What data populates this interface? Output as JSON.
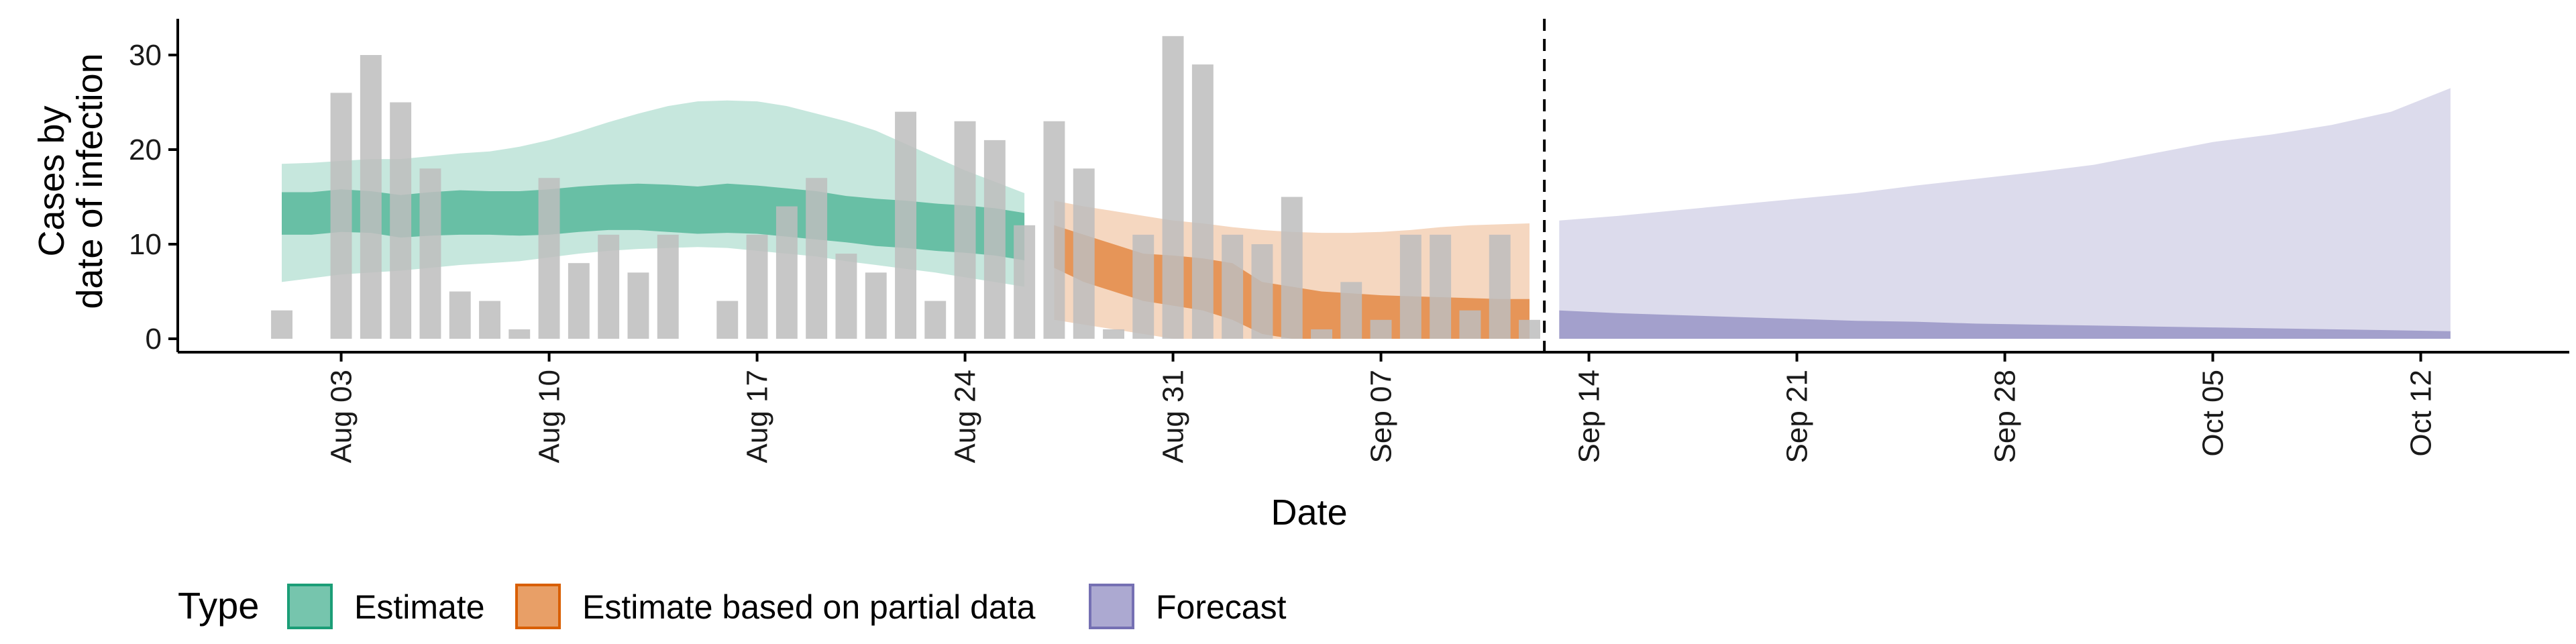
{
  "chart_data": {
    "type": "bar",
    "xlabel": "Date",
    "ylabel": [
      "Cases by",
      "date of infection"
    ],
    "ylim": [
      0,
      34
    ],
    "yticks": [
      0,
      10,
      20,
      30
    ],
    "xticks": [
      "Aug 03",
      "Aug 10",
      "Aug 17",
      "Aug 24",
      "Aug 31",
      "Sep 07",
      "Sep 14",
      "Sep 21",
      "Sep 28",
      "Oct 05",
      "Oct 12"
    ],
    "xtick_days": [
      2,
      9,
      16,
      23,
      30,
      37,
      44,
      51,
      58,
      65,
      72
    ],
    "x_domain_days": [
      -3.5,
      77
    ],
    "grid": false,
    "dashed_vline_day": 42.5,
    "legend": {
      "title": "Type",
      "position": "bottom",
      "entries": [
        {
          "label": "Estimate",
          "fill": "#1b9e77",
          "stroke": "#1b9e77"
        },
        {
          "label": "Estimate based on partial data",
          "fill": "#d95f02",
          "stroke": "#d95f02"
        },
        {
          "label": "Forecast",
          "fill": "#7570b3",
          "stroke": "#7570b3"
        }
      ]
    },
    "bars": {
      "color": "#bdbdbd",
      "days": [
        0,
        1,
        2,
        3,
        4,
        5,
        6,
        7,
        8,
        9,
        10,
        11,
        12,
        13,
        14,
        15,
        16,
        17,
        18,
        19,
        20,
        21,
        22,
        23,
        24,
        25,
        26,
        27,
        28,
        29,
        30,
        31,
        32,
        33,
        34,
        35,
        36,
        37,
        38,
        39,
        40,
        41,
        42
      ],
      "values": [
        3,
        0,
        26,
        30,
        25,
        18,
        5,
        4,
        1,
        17,
        8,
        11,
        7,
        11,
        0,
        4,
        11,
        14,
        17,
        9,
        7,
        24,
        4,
        23,
        21,
        12,
        23,
        18,
        1,
        11,
        32,
        29,
        11,
        10,
        15,
        1,
        6,
        2,
        11,
        11,
        3,
        11,
        2
      ]
    },
    "series": [
      {
        "name": "Estimate",
        "color": "#1b9e77",
        "days": [
          0,
          1,
          2,
          3,
          4,
          5,
          6,
          7,
          8,
          9,
          10,
          11,
          12,
          13,
          14,
          15,
          16,
          17,
          18,
          19,
          20,
          21,
          22,
          23,
          24,
          25
        ],
        "median": [
          13,
          13,
          13.5,
          13.3,
          13,
          13.3,
          13.5,
          13.3,
          13.2,
          13.4,
          13.6,
          13.8,
          14,
          13.8,
          13.6,
          13.8,
          13.6,
          13.3,
          13,
          12.5,
          12.2,
          12,
          11.7,
          11.5,
          11.2,
          10.8
        ],
        "lower50": [
          11,
          11,
          11.3,
          11.2,
          10.7,
          10.9,
          11,
          11,
          10.9,
          11,
          11.3,
          11.5,
          11.5,
          11.3,
          11.1,
          11.2,
          11.1,
          10.8,
          10.5,
          10.2,
          9.8,
          9.6,
          9.3,
          9.1,
          8.8,
          8.3
        ],
        "upper50": [
          15.5,
          15.5,
          15.8,
          15.6,
          15.2,
          15.5,
          15.7,
          15.6,
          15.6,
          15.8,
          16.1,
          16.3,
          16.4,
          16.3,
          16.1,
          16.4,
          16.2,
          15.9,
          15.6,
          15.1,
          14.8,
          14.6,
          14.3,
          14.1,
          13.8,
          13.3
        ],
        "lower90": [
          6,
          6.4,
          6.8,
          7,
          7.2,
          7.5,
          7.8,
          8,
          8.2,
          8.6,
          9,
          9.3,
          9.5,
          9.6,
          9.7,
          9.6,
          9.3,
          9,
          8.7,
          8.2,
          7.8,
          7.4,
          7,
          6.5,
          6,
          5.5
        ],
        "upper90": [
          18.5,
          18.6,
          18.8,
          19,
          19,
          19.3,
          19.6,
          19.8,
          20.3,
          21,
          21.9,
          22.9,
          23.8,
          24.6,
          25.1,
          25.2,
          25.1,
          24.6,
          23.8,
          23,
          22,
          20.6,
          19.2,
          17.8,
          16.6,
          15.4
        ]
      },
      {
        "name": "Estimate based on partial data",
        "color": "#d95f02",
        "days": [
          26,
          27,
          28,
          29,
          30,
          31,
          32,
          33,
          34,
          35,
          36,
          37,
          38,
          39,
          40,
          41,
          42
        ],
        "median": [
          10,
          8.6,
          7.5,
          6.5,
          6.5,
          6,
          5.2,
          4,
          3.5,
          3.2,
          3,
          2.8,
          2.7,
          2.6,
          2.6,
          2.5,
          2.5
        ],
        "lower50": [
          7.5,
          6,
          5,
          4,
          3.5,
          3,
          2,
          0.5,
          0,
          0,
          0,
          0,
          0,
          0,
          0,
          0,
          0
        ],
        "upper50": [
          12,
          11,
          10,
          9,
          8.8,
          8.5,
          8,
          6,
          5.5,
          5,
          4.8,
          4.6,
          4.5,
          4.4,
          4.3,
          4.2,
          4.2
        ],
        "lower90": [
          2,
          1.5,
          1,
          0.5,
          0,
          0,
          0,
          0,
          0,
          0,
          0,
          0,
          0,
          0,
          0,
          0,
          0
        ],
        "upper90": [
          14.6,
          14,
          13.5,
          13,
          12.5,
          12.2,
          11.8,
          11.5,
          11.3,
          11.2,
          11.2,
          11.3,
          11.5,
          11.8,
          12,
          12.1,
          12.2
        ]
      },
      {
        "name": "Forecast",
        "color": "#7570b3",
        "days": [
          43,
          45,
          47,
          49,
          51,
          53,
          55,
          57,
          59,
          61,
          63,
          65,
          67,
          69,
          71,
          73
        ],
        "lower90": [
          0,
          0,
          0,
          0,
          0,
          0,
          0,
          0,
          0,
          0,
          0,
          0,
          0,
          0,
          0,
          0
        ],
        "upper90": [
          12.5,
          13,
          13.6,
          14.2,
          14.8,
          15.4,
          16.2,
          16.9,
          17.6,
          18.4,
          19.6,
          20.8,
          21.6,
          22.6,
          24,
          26.5
        ],
        "lower50": [
          0,
          0,
          0,
          0,
          0,
          0,
          0,
          0,
          0,
          0,
          0,
          0,
          0,
          0,
          0,
          0
        ],
        "upper50": [
          3,
          2.7,
          2.5,
          2.3,
          2.1,
          1.9,
          1.8,
          1.6,
          1.5,
          1.4,
          1.3,
          1.2,
          1.1,
          1,
          0.9,
          0.8
        ]
      }
    ]
  }
}
